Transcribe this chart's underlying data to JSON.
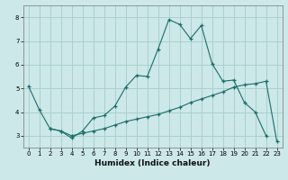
{
  "xlabel": "Humidex (Indice chaleur)",
  "bg_color": "#cce8e8",
  "grid_color": "#aacfcf",
  "line_color": "#1a6e6a",
  "series1_x": [
    0,
    1,
    2,
    3,
    4,
    5,
    6,
    7,
    8,
    9,
    10,
    11,
    12,
    13,
    14,
    15,
    16,
    17,
    18,
    19,
    20,
    21,
    22
  ],
  "series1_y": [
    5.1,
    4.1,
    3.3,
    3.2,
    2.9,
    3.2,
    3.75,
    3.85,
    4.25,
    5.05,
    5.55,
    5.5,
    6.65,
    7.9,
    7.7,
    7.1,
    7.65,
    6.05,
    5.3,
    5.35,
    4.4,
    4.0,
    3.0
  ],
  "series2_x": [
    2,
    3,
    4,
    5,
    6,
    7,
    8,
    9,
    10,
    11,
    12,
    13,
    14,
    15,
    16,
    17,
    18,
    19,
    20,
    21,
    22,
    23
  ],
  "series2_y": [
    3.3,
    3.2,
    3.0,
    3.1,
    3.2,
    3.3,
    3.45,
    3.6,
    3.7,
    3.8,
    3.9,
    4.05,
    4.2,
    4.4,
    4.55,
    4.7,
    4.85,
    5.05,
    5.15,
    5.2,
    5.3,
    2.75
  ],
  "ylim": [
    2.5,
    8.5
  ],
  "xlim": [
    -0.5,
    23.5
  ],
  "yticks": [
    3,
    4,
    5,
    6,
    7,
    8
  ],
  "xticks": [
    0,
    1,
    2,
    3,
    4,
    5,
    6,
    7,
    8,
    9,
    10,
    11,
    12,
    13,
    14,
    15,
    16,
    17,
    18,
    19,
    20,
    21,
    22,
    23
  ],
  "xlabel_fontsize": 6.5,
  "tick_fontsize": 5.0
}
